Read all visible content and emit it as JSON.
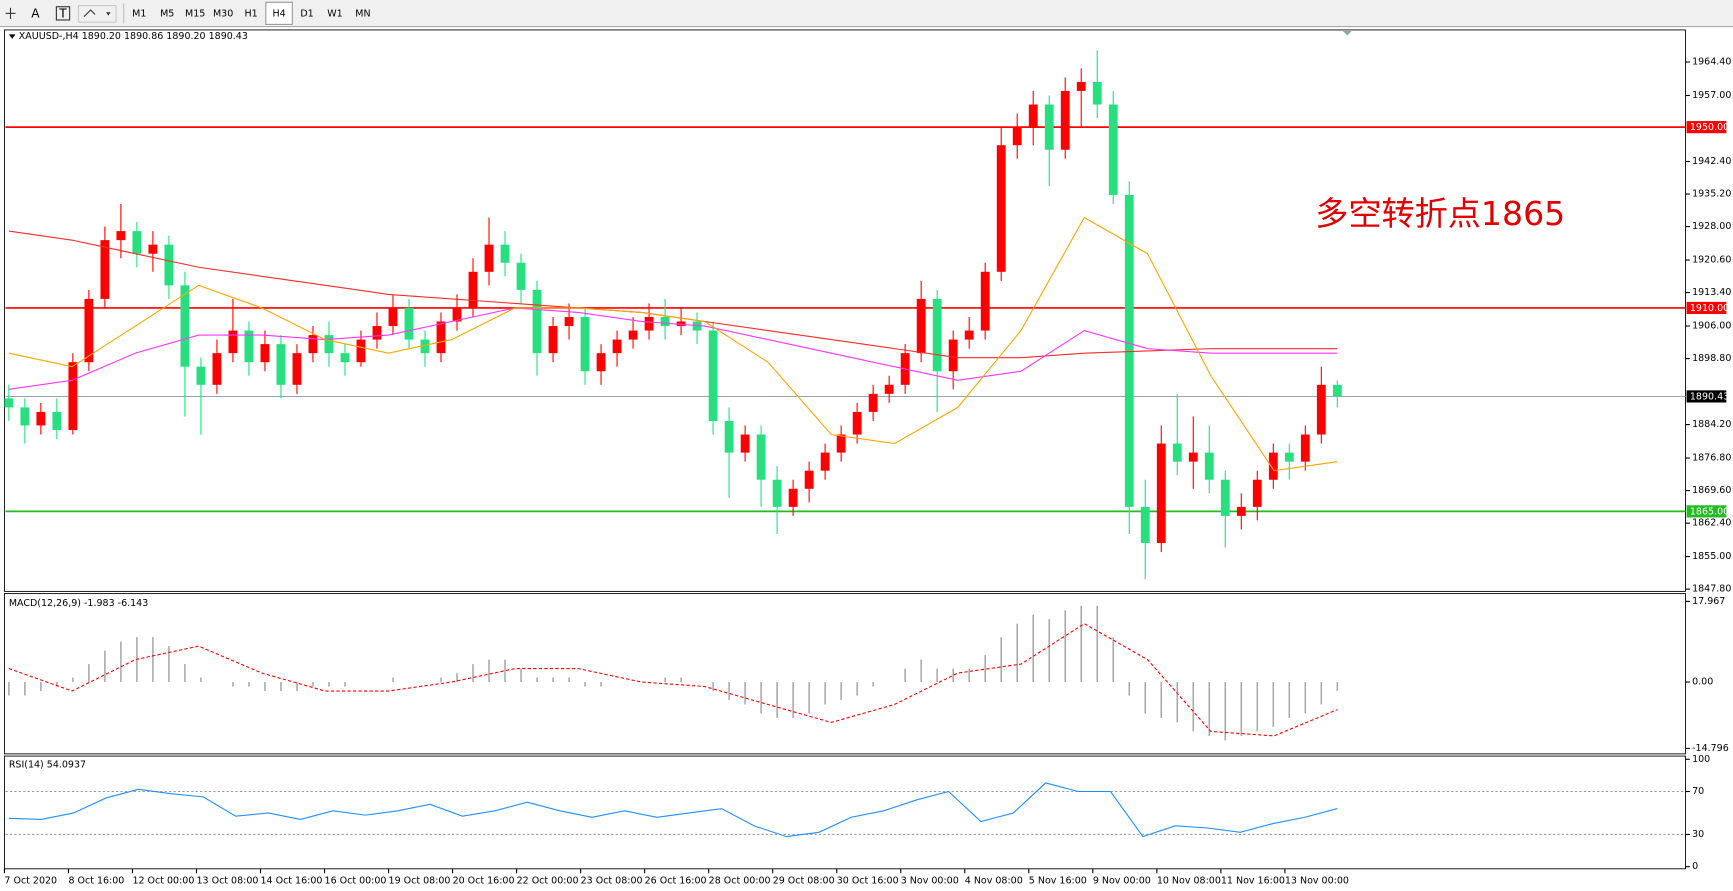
{
  "toolbar": {
    "tools": [
      "A",
      "T"
    ],
    "periods": [
      "M1",
      "M5",
      "M15",
      "M30",
      "H1",
      "H4",
      "D1",
      "W1",
      "MN"
    ],
    "active": "H4"
  },
  "chart_data": {
    "type": "candlestick",
    "title": "XAUUSD-,H4 1890.20 1890.86 1890.20 1890.43",
    "annotation": "多空转折点1865",
    "up_color": "#ff0000",
    "down_color": "#26e07f",
    "categories": [
      "7 Oct 2020",
      null,
      null,
      null,
      "8 Oct 16:00",
      null,
      null,
      null,
      "12 Oct 00:00",
      null,
      null,
      null,
      "13 Oct 08:00",
      null,
      null,
      null,
      "14 Oct 16:00",
      null,
      null,
      null,
      "16 Oct 00:00",
      null,
      null,
      null,
      "19 Oct 08:00",
      null,
      null,
      null,
      "20 Oct 16:00",
      null,
      null,
      null,
      "22 Oct 00:00",
      null,
      null,
      null,
      "23 Oct 08:00",
      null,
      null,
      null,
      "26 Oct 16:00",
      null,
      null,
      null,
      "28 Oct 00:00",
      null,
      null,
      null,
      "29 Oct 08:00",
      null,
      null,
      null,
      "30 Oct 16:00",
      null,
      null,
      null,
      "3 Nov 00:00",
      null,
      null,
      null,
      "4 Nov 08:00",
      null,
      null,
      null,
      "5 Nov 16:00",
      null,
      null,
      null,
      "9 Nov 00:00",
      null,
      null,
      null,
      "10 Nov 08:00",
      null,
      null,
      null,
      "11 Nov 16:00",
      null,
      null,
      null,
      "13 Nov 00:00",
      null,
      null,
      null
    ],
    "candles": [
      [
        1890,
        1893,
        1885,
        1888
      ],
      [
        1888,
        1890,
        1880,
        1884
      ],
      [
        1884,
        1889,
        1882,
        1887
      ],
      [
        1887,
        1890,
        1881,
        1883
      ],
      [
        1883,
        1900,
        1882,
        1898
      ],
      [
        1898,
        1914,
        1896,
        1912
      ],
      [
        1912,
        1928,
        1910,
        1925
      ],
      [
        1925,
        1933,
        1921,
        1927
      ],
      [
        1927,
        1929,
        1919,
        1922
      ],
      [
        1922,
        1927,
        1918,
        1924
      ],
      [
        1924,
        1926,
        1912,
        1915
      ],
      [
        1915,
        1918,
        1886,
        1897
      ],
      [
        1897,
        1899,
        1882,
        1893
      ],
      [
        1893,
        1903,
        1891,
        1900
      ],
      [
        1900,
        1912,
        1898,
        1905
      ],
      [
        1905,
        1907,
        1895,
        1898
      ],
      [
        1898,
        1905,
        1896,
        1902
      ],
      [
        1902,
        1904,
        1890,
        1893
      ],
      [
        1893,
        1902,
        1891,
        1900
      ],
      [
        1900,
        1906,
        1898,
        1904
      ],
      [
        1904,
        1907,
        1897,
        1900
      ],
      [
        1900,
        1902,
        1895,
        1898
      ],
      [
        1898,
        1905,
        1897,
        1903
      ],
      [
        1903,
        1909,
        1901,
        1906
      ],
      [
        1906,
        1913,
        1904,
        1910
      ],
      [
        1910,
        1912,
        1901,
        1903
      ],
      [
        1903,
        1905,
        1897,
        1900
      ],
      [
        1900,
        1909,
        1898,
        1907
      ],
      [
        1907,
        1913,
        1905,
        1910
      ],
      [
        1910,
        1921,
        1908,
        1918
      ],
      [
        1918,
        1930,
        1915,
        1924
      ],
      [
        1924,
        1927,
        1917,
        1920
      ],
      [
        1920,
        1922,
        1911,
        1914
      ],
      [
        1914,
        1916,
        1895,
        1900
      ],
      [
        1900,
        1908,
        1898,
        1906
      ],
      [
        1906,
        1911,
        1903,
        1908
      ],
      [
        1908,
        1910,
        1893,
        1896
      ],
      [
        1896,
        1902,
        1893,
        1900
      ],
      [
        1900,
        1905,
        1897,
        1903
      ],
      [
        1903,
        1908,
        1901,
        1905
      ],
      [
        1905,
        1911,
        1903,
        1908
      ],
      [
        1908,
        1912,
        1903,
        1906
      ],
      [
        1906,
        1910,
        1904,
        1907
      ],
      [
        1907,
        1909,
        1902,
        1905
      ],
      [
        1905,
        1907,
        1882,
        1885
      ],
      [
        1885,
        1888,
        1868,
        1878
      ],
      [
        1878,
        1884,
        1876,
        1882
      ],
      [
        1882,
        1884,
        1866,
        1872
      ],
      [
        1872,
        1875,
        1860,
        1866
      ],
      [
        1866,
        1872,
        1864,
        1870
      ],
      [
        1870,
        1876,
        1867,
        1874
      ],
      [
        1874,
        1880,
        1872,
        1878
      ],
      [
        1878,
        1884,
        1876,
        1882
      ],
      [
        1882,
        1889,
        1880,
        1887
      ],
      [
        1887,
        1893,
        1885,
        1891
      ],
      [
        1891,
        1895,
        1889,
        1893
      ],
      [
        1893,
        1902,
        1891,
        1900
      ],
      [
        1900,
        1916,
        1898,
        1912
      ],
      [
        1912,
        1914,
        1887,
        1896
      ],
      [
        1896,
        1905,
        1892,
        1903
      ],
      [
        1903,
        1908,
        1901,
        1905
      ],
      [
        1905,
        1920,
        1903,
        1918
      ],
      [
        1918,
        1950,
        1916,
        1946
      ],
      [
        1946,
        1953,
        1943,
        1950
      ],
      [
        1950,
        1958,
        1946,
        1955
      ],
      [
        1955,
        1957,
        1937,
        1945
      ],
      [
        1945,
        1961,
        1943,
        1958
      ],
      [
        1958,
        1963,
        1950,
        1960
      ],
      [
        1960,
        1967,
        1952,
        1955
      ],
      [
        1955,
        1958,
        1933,
        1935
      ],
      [
        1935,
        1938,
        1860,
        1866
      ],
      [
        1866,
        1872,
        1850,
        1858
      ],
      [
        1858,
        1884,
        1856,
        1880
      ],
      [
        1880,
        1891,
        1873,
        1876
      ],
      [
        1876,
        1886,
        1870,
        1878
      ],
      [
        1878,
        1884,
        1869,
        1872
      ],
      [
        1872,
        1874,
        1857,
        1864
      ],
      [
        1864,
        1869,
        1861,
        1866
      ],
      [
        1866,
        1874,
        1863,
        1872
      ],
      [
        1872,
        1880,
        1870,
        1878
      ],
      [
        1878,
        1880,
        1872,
        1876
      ],
      [
        1876,
        1884,
        1874,
        1882
      ],
      [
        1882,
        1897,
        1880,
        1893
      ],
      [
        1893,
        1894,
        1888,
        1890.43
      ]
    ],
    "moving_averages": [
      {
        "color": "#ff2a2a",
        "values": [
          1927,
          1925,
          1922,
          1919,
          1917,
          1915,
          1913,
          1912,
          1911,
          1910,
          1909,
          1907,
          1905,
          1903,
          1901,
          1899,
          1899,
          1900,
          1900.5,
          1901,
          1901,
          1901
        ]
      },
      {
        "color": "#ff33ff",
        "values": [
          1892,
          1894,
          1900,
          1904,
          1904,
          1903,
          1904,
          1907,
          1910,
          1909,
          1907,
          1906,
          1903,
          1900,
          1897,
          1894,
          1896,
          1905,
          1901,
          1900,
          1900,
          1900
        ]
      },
      {
        "color": "#ffa500",
        "values": [
          1900,
          1897,
          1906,
          1915,
          1910,
          1903,
          1900,
          1903,
          1910,
          1910,
          1909,
          1907,
          1898,
          1882,
          1880,
          1888,
          1905,
          1930,
          1922,
          1895,
          1874,
          1876
        ]
      }
    ],
    "ylim": [
      1847.3,
      1971.5
    ],
    "yticks": [
      {
        "value": 1964.4,
        "label": "1964.40"
      },
      {
        "value": 1957,
        "label": "1957.00"
      },
      {
        "value": 1942.4,
        "label": "1942.40"
      },
      {
        "value": 1935.2,
        "label": "1935.20"
      },
      {
        "value": 1928,
        "label": "1928.00"
      },
      {
        "value": 1920.6,
        "label": "1920.60"
      },
      {
        "value": 1913.4,
        "label": "1913.40"
      },
      {
        "value": 1906,
        "label": "1906.00"
      },
      {
        "value": 1898.8,
        "label": "1898.80"
      },
      {
        "value": 1884.2,
        "label": "1884.20"
      },
      {
        "value": 1876.8,
        "label": "1876.80"
      },
      {
        "value": 1869.6,
        "label": "1869.60"
      },
      {
        "value": 1862.4,
        "label": "1862.40"
      },
      {
        "value": 1855,
        "label": "1855.00"
      },
      {
        "value": 1847.8,
        "label": "1847.80"
      }
    ],
    "levels": [
      {
        "value": 1950,
        "label": "1950.00",
        "color": "#ff0000"
      },
      {
        "value": 1910,
        "label": "1910.00",
        "color": "#ff0000"
      },
      {
        "value": 1865,
        "label": "1865.00",
        "color": "#22bb22"
      }
    ],
    "current": {
      "value": 1890.43,
      "label": "1890.43",
      "color": "#8a9aa8"
    },
    "macd": {
      "title": "MACD(12,26,9) -1.983 -6.143",
      "color": "#a8a8a8",
      "signal_color": "#ff0000",
      "values": [
        -3,
        -3,
        -2,
        -1,
        1,
        4,
        7,
        9,
        10,
        10,
        8,
        4,
        1,
        0,
        -1,
        -1,
        -2,
        -2,
        -2,
        -1,
        -1,
        -1,
        0,
        0,
        1,
        0,
        0,
        1,
        2,
        4,
        5,
        5,
        3,
        1,
        1,
        1,
        -1,
        -1,
        0,
        0,
        0,
        1,
        1,
        0,
        -2,
        -4,
        -5,
        -7,
        -8,
        -8,
        -7,
        -5,
        -4,
        -3,
        -1,
        0,
        3,
        5,
        3,
        3,
        3,
        6,
        10,
        13,
        15,
        14,
        16,
        17,
        17,
        10,
        -3,
        -7,
        -8,
        -9,
        -11,
        -12,
        -13,
        -12,
        -11,
        -10,
        -8,
        -7,
        -5,
        -1.983
      ],
      "signal": [
        3,
        -2,
        5,
        8,
        2,
        -2,
        -2,
        0,
        3,
        3,
        0,
        -1,
        -5,
        -9,
        -5,
        2,
        4,
        13,
        5,
        -11,
        -12,
        -6.143
      ],
      "ylim": [
        -16,
        19.7
      ],
      "yticks": [
        17.967,
        {
          "value": 0,
          "label": "0.00"
        },
        -14.796
      ]
    },
    "rsi": {
      "title": "RSI(14) 54.0937",
      "color": "#1e90ff",
      "values": [
        45,
        44,
        50,
        64,
        72,
        68,
        65,
        47,
        50,
        44,
        52,
        48,
        52,
        58,
        47,
        52,
        60,
        52,
        46,
        52,
        46,
        50,
        54,
        38,
        28,
        32,
        46,
        52,
        62,
        70,
        42,
        50,
        78,
        70,
        70,
        28,
        38,
        36,
        32,
        40,
        46,
        54.0937
      ],
      "ylim": [
        -2,
        103
      ],
      "yticks": [
        100,
        70,
        30,
        0
      ],
      "levels": [
        70,
        30
      ]
    }
  }
}
